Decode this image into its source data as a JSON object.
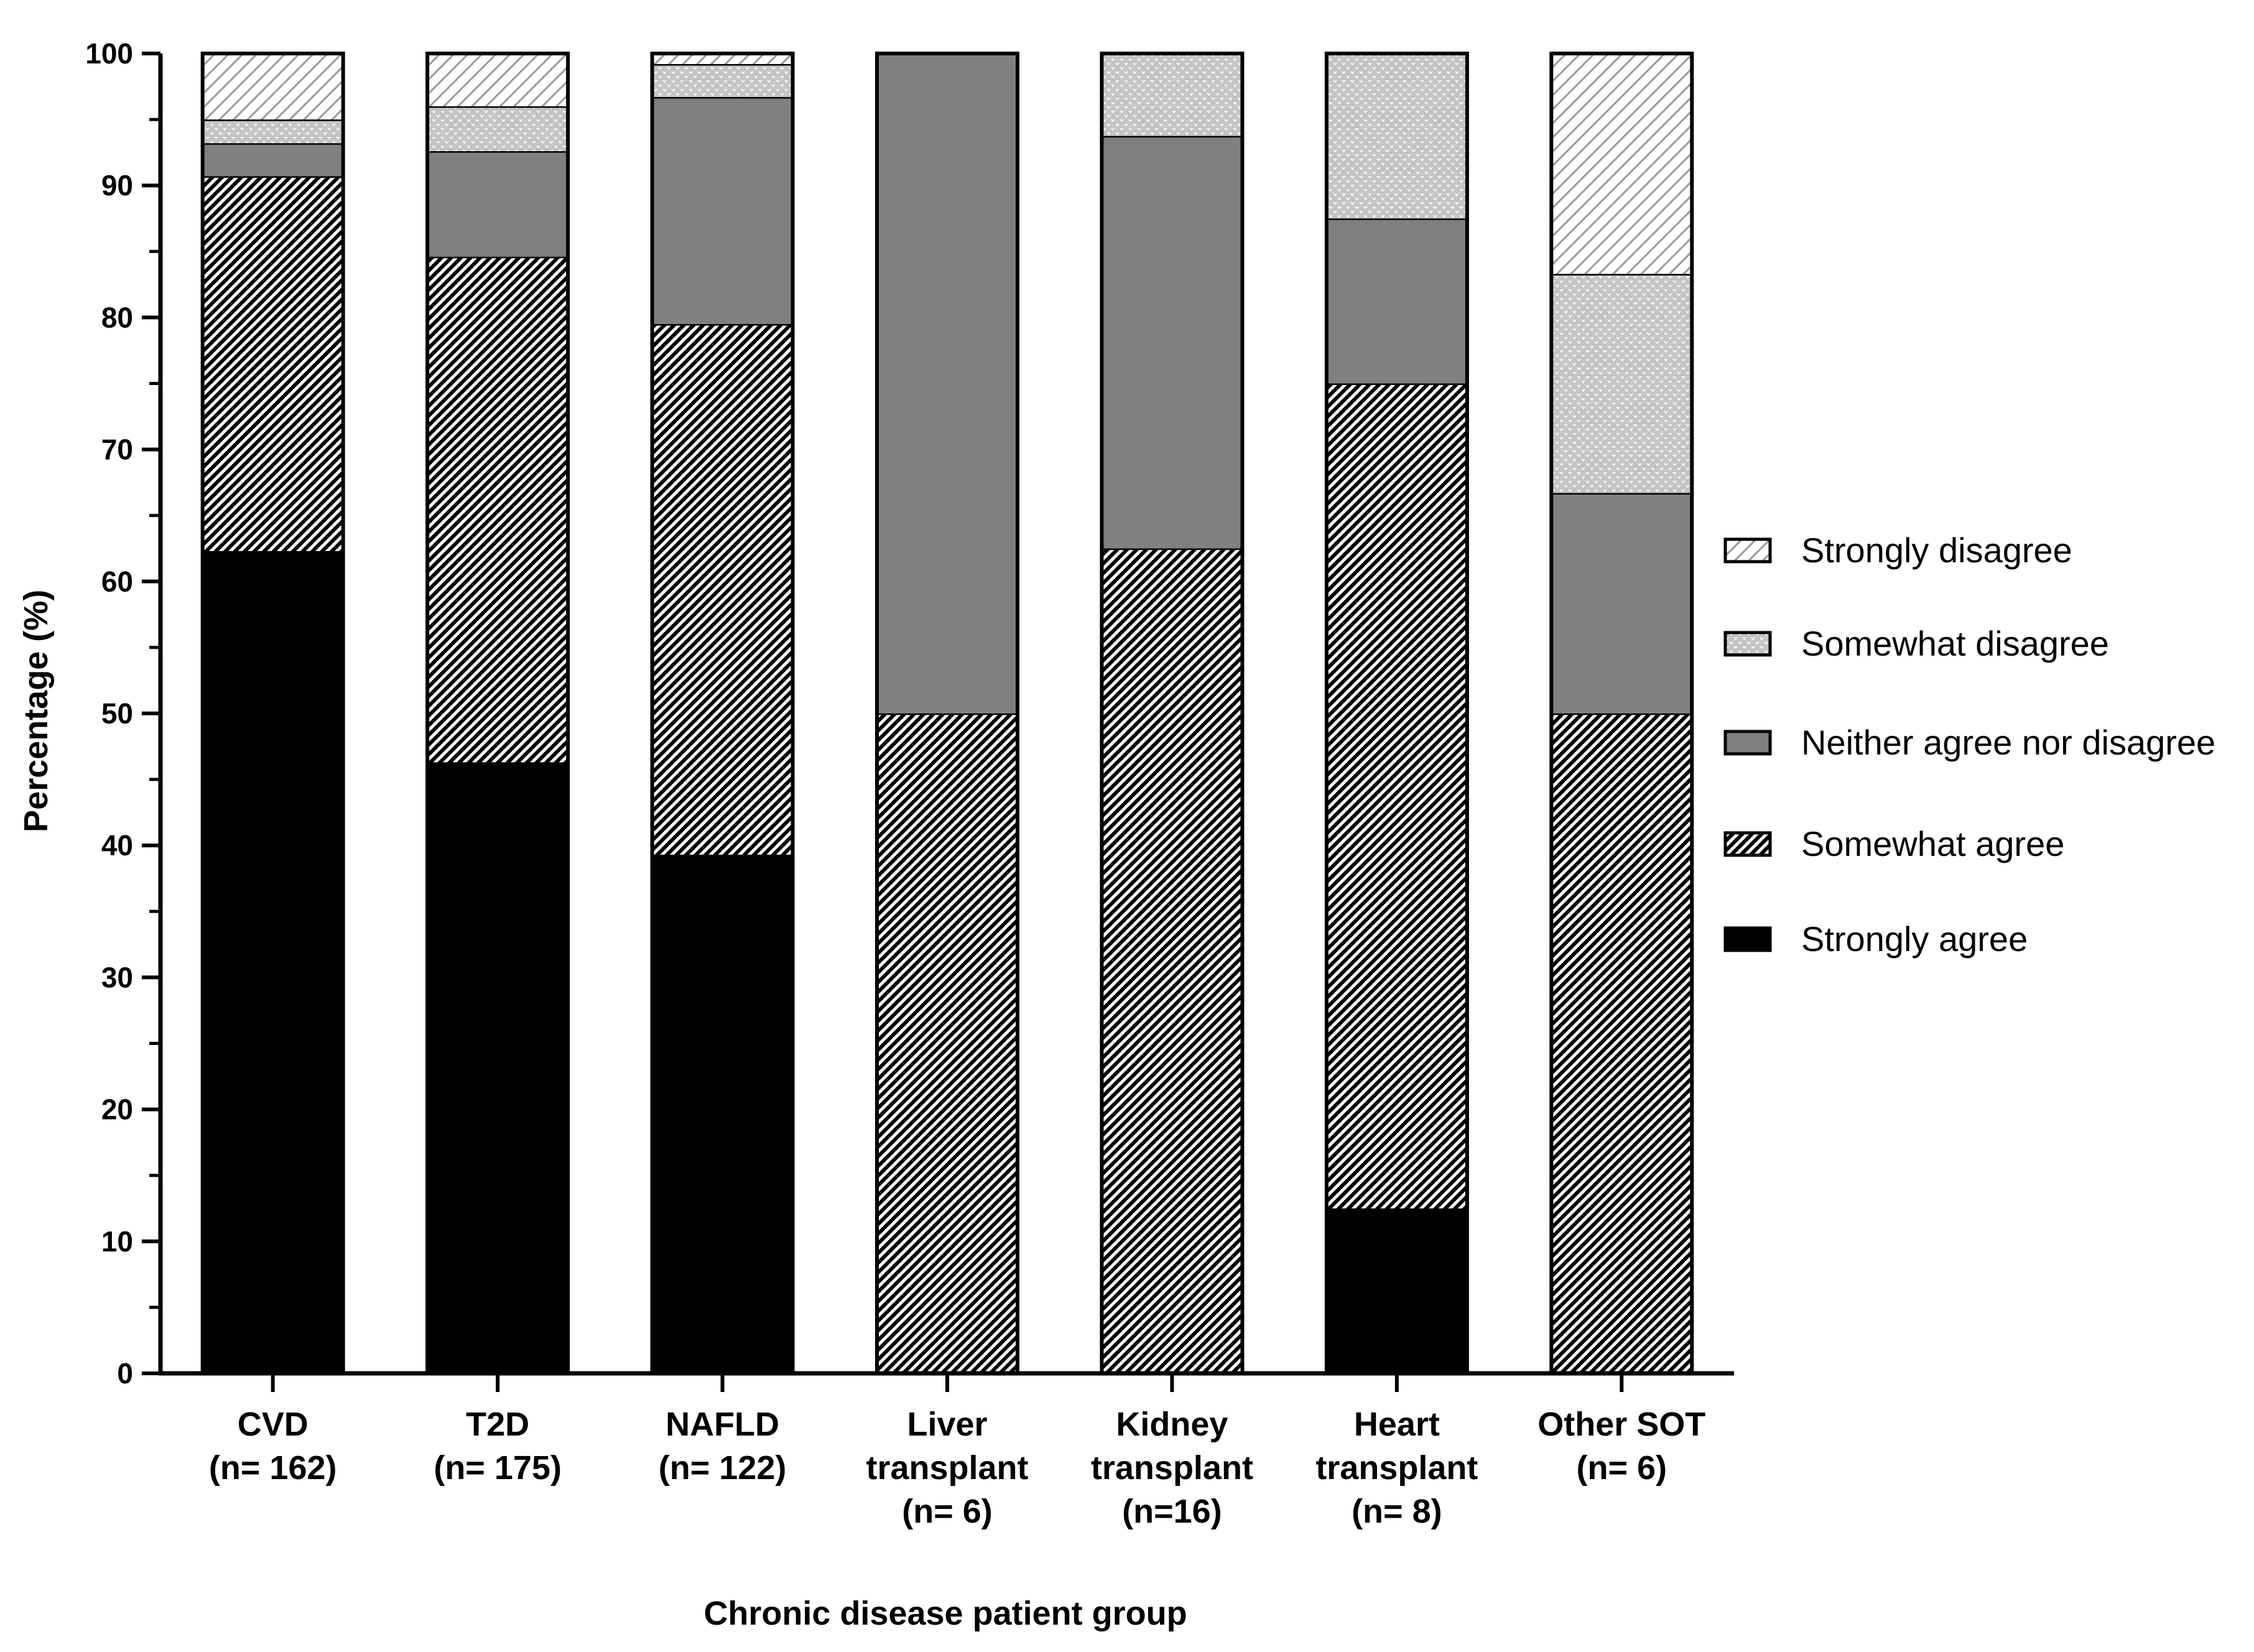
{
  "chart_data": {
    "type": "bar",
    "stacked": true,
    "title": "",
    "xlabel": "Chronic disease patient group",
    "ylabel": "Percentage (%)",
    "ylim": [
      0,
      100
    ],
    "yticks": [
      0,
      10,
      20,
      30,
      40,
      50,
      60,
      70,
      80,
      90,
      100
    ],
    "grid": false,
    "legend_position": "right",
    "categories": [
      [
        "CVD",
        "(n= 162)"
      ],
      [
        "T2D",
        "(n= 175)"
      ],
      [
        "NAFLD",
        "(n= 122)"
      ],
      [
        "Liver",
        "transplant",
        "(n= 6)"
      ],
      [
        "Kidney",
        "transplant",
        "(n=16)"
      ],
      [
        "Heart",
        "transplant",
        "(n= 8)"
      ],
      [
        "Other SOT",
        "(n= 6)"
      ]
    ],
    "series": [
      {
        "name": "Strongly agree",
        "pattern": "solid-black",
        "values": [
          62.3,
          46.3,
          39.3,
          0,
          0,
          12.5,
          0
        ]
      },
      {
        "name": "Somewhat agree",
        "pattern": "dense-diagonal",
        "values": [
          28.4,
          38.3,
          40.2,
          50,
          62.5,
          62.5,
          50
        ]
      },
      {
        "name": "Neither agree nor disagree",
        "pattern": "solid-gray",
        "values": [
          2.5,
          8.0,
          17.2,
          50,
          31.25,
          12.5,
          16.7
        ]
      },
      {
        "name": "Somewhat disagree",
        "pattern": "dotted-light",
        "values": [
          1.8,
          3.4,
          2.5,
          0,
          6.25,
          12.5,
          16.6
        ]
      },
      {
        "name": "Strongly disagree",
        "pattern": "sparse-diagonal",
        "values": [
          5.0,
          4.0,
          0.8,
          0,
          0,
          0,
          16.7
        ]
      }
    ],
    "legend_order": [
      "Strongly disagree",
      "Somewhat disagree",
      "Neither agree nor disagree",
      "Somewhat agree",
      "Strongly agree"
    ],
    "colors": {
      "solid-black": "#000000",
      "dense-diagonal": "#000000",
      "solid-gray": "#808080",
      "dotted-light": "#c8c8c8",
      "sparse-diagonal": "#ffffff",
      "outline": "#000000"
    }
  }
}
